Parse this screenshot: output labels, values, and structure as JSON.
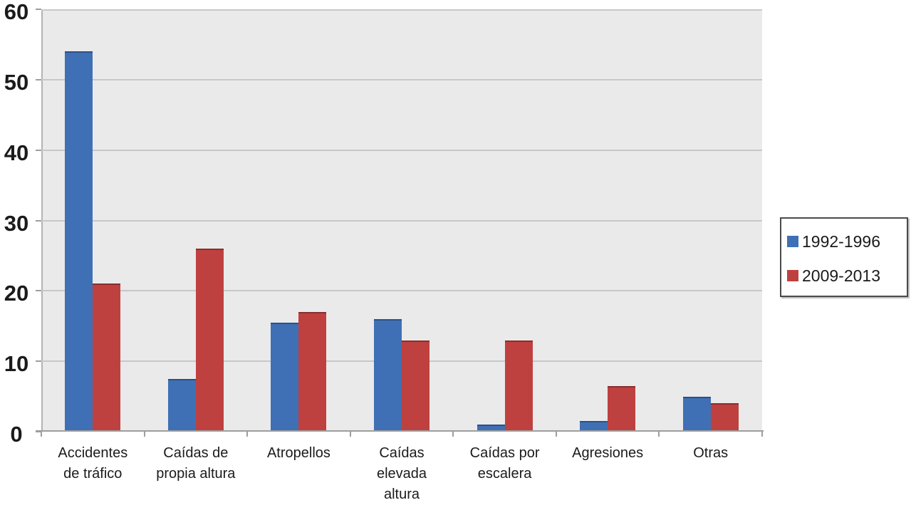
{
  "chart_data": {
    "type": "bar",
    "title": "",
    "xlabel": "",
    "ylabel": "",
    "categories": [
      "Accidentes\nde tráfico",
      "Caídas de\npropia altura",
      "Atropellos",
      "Caídas\nelevada\naltura",
      "Caídas por\nescalera",
      "Agresiones",
      "Otras"
    ],
    "series": [
      {
        "name": "1992-1996",
        "color": "#3F70B5",
        "values": [
          54,
          7.5,
          15.5,
          16,
          1,
          1.5,
          5
        ]
      },
      {
        "name": "2009-2013",
        "color": "#BE4140",
        "values": [
          21,
          26,
          17,
          13,
          13,
          6.5,
          4
        ]
      }
    ],
    "ylim": [
      0,
      60
    ],
    "yticks": [
      0,
      10,
      20,
      30,
      40,
      50,
      60
    ],
    "grid": true,
    "legend_position": "right"
  },
  "colors": {
    "background": "#FFFFFF",
    "plot_bg": "#EAEAEA",
    "gridline": "#C8C8C8",
    "axis": "#9E9E9E",
    "text": "#1B1B1B",
    "legend_border": "#4A4A4A"
  }
}
